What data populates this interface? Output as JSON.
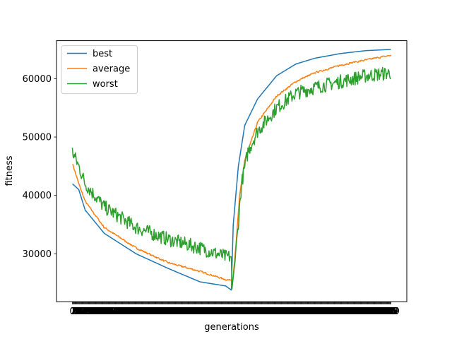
{
  "chart_data": {
    "type": "line",
    "title": "",
    "xlabel": "generations",
    "ylabel": "fitness",
    "x_ticks": "dense, overlapping integer generation labels (unreadable)",
    "ylim": [
      21800,
      66500
    ],
    "y_ticks": [
      30000,
      40000,
      50000,
      60000
    ],
    "y_tick_labels": [
      "30000",
      "40000",
      "50000",
      "60000"
    ],
    "legend": {
      "placement": "top-left"
    },
    "grid": false,
    "generations": {
      "start": 0,
      "end": 499,
      "drop_generation": 250
    },
    "series": [
      {
        "name": "best",
        "color": "#1f77b4",
        "anchors": [
          [
            0,
            42000
          ],
          [
            10,
            41000
          ],
          [
            20,
            37500
          ],
          [
            50,
            33500
          ],
          [
            100,
            30000
          ],
          [
            150,
            27500
          ],
          [
            200,
            25200
          ],
          [
            240,
            24500
          ],
          [
            249,
            23800
          ],
          [
            252,
            35000
          ],
          [
            260,
            45000
          ],
          [
            270,
            52000
          ],
          [
            290,
            56500
          ],
          [
            320,
            60500
          ],
          [
            350,
            62500
          ],
          [
            380,
            63500
          ],
          [
            420,
            64300
          ],
          [
            460,
            64800
          ],
          [
            499,
            65000
          ]
        ],
        "noise": 0
      },
      {
        "name": "average",
        "color": "#ff7f0e",
        "anchors": [
          [
            0,
            45500
          ],
          [
            10,
            42000
          ],
          [
            20,
            39000
          ],
          [
            50,
            34500
          ],
          [
            100,
            31000
          ],
          [
            150,
            28500
          ],
          [
            200,
            27000
          ],
          [
            240,
            25600
          ],
          [
            249,
            25500
          ],
          [
            250,
            24000
          ],
          [
            255,
            30000
          ],
          [
            262,
            40000
          ],
          [
            270,
            46000
          ],
          [
            290,
            52500
          ],
          [
            320,
            57000
          ],
          [
            350,
            59500
          ],
          [
            380,
            61000
          ],
          [
            420,
            62300
          ],
          [
            460,
            63200
          ],
          [
            499,
            64000
          ]
        ],
        "noise": 150
      },
      {
        "name": "worst",
        "color": "#2ca02c",
        "anchors": [
          [
            0,
            47500
          ],
          [
            10,
            45000
          ],
          [
            20,
            42000
          ],
          [
            50,
            38000
          ],
          [
            100,
            34500
          ],
          [
            150,
            32500
          ],
          [
            200,
            31000
          ],
          [
            240,
            29500
          ],
          [
            249,
            29500
          ],
          [
            250,
            24000
          ],
          [
            256,
            30000
          ],
          [
            265,
            42000
          ],
          [
            275,
            47500
          ],
          [
            290,
            51000
          ],
          [
            320,
            55000
          ],
          [
            350,
            57500
          ],
          [
            380,
            58500
          ],
          [
            420,
            59500
          ],
          [
            460,
            60500
          ],
          [
            499,
            61000
          ]
        ],
        "noise": 1200
      }
    ]
  }
}
